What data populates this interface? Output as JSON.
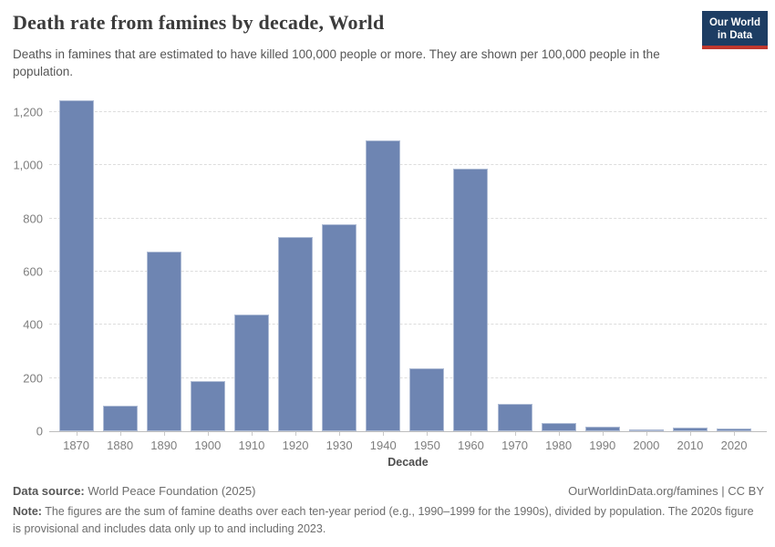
{
  "header": {
    "title": "Death rate from famines by decade, World",
    "subtitle": "Deaths in famines that are estimated to have killed 100,000 people or more. They are shown per 100,000 people in the population.",
    "logo_line1": "Our World",
    "logo_line2": "in Data"
  },
  "chart_data": {
    "type": "bar",
    "title": "Death rate from famines by decade, World",
    "xlabel": "Decade",
    "ylabel": "",
    "categories": [
      "1870",
      "1880",
      "1890",
      "1900",
      "1910",
      "1920",
      "1930",
      "1940",
      "1950",
      "1960",
      "1970",
      "1980",
      "1990",
      "2000",
      "2010",
      "2020"
    ],
    "values": [
      1243,
      95,
      676,
      190,
      440,
      730,
      780,
      1093,
      235,
      989,
      103,
      30,
      18,
      8,
      15,
      12
    ],
    "ylim": [
      0,
      1260
    ],
    "yticks": [
      0,
      200,
      400,
      600,
      800,
      1000,
      1200
    ],
    "ytick_labels": [
      "0",
      "200",
      "400",
      "600",
      "800",
      "1,000",
      "1,200"
    ],
    "grid": "horizontal-dashed",
    "legend": "none",
    "colors": {
      "bar": "#6e85b2",
      "gridline": "#dddddd",
      "axis_text": "#7e7e7e",
      "logo_bg": "#1d3d63",
      "logo_accent": "#c0382e"
    }
  },
  "footer": {
    "data_source_label": "Data source:",
    "data_source_value": " World Peace Foundation (2025)",
    "attribution": "OurWorldinData.org/famines | CC BY",
    "note_label": "Note:",
    "note_value": " The figures are the sum of famine deaths over each ten-year period (e.g., 1990–1999 for the 1990s), divided by population. The 2020s figure is provisional and includes data only up to and including 2023."
  }
}
